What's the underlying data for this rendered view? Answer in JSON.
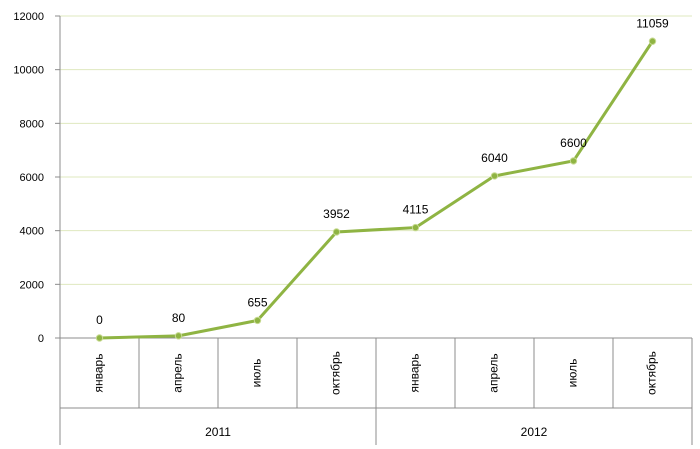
{
  "chart_data": {
    "type": "line",
    "categories": [
      "январь",
      "апрель",
      "июль",
      "октябрь",
      "январь",
      "апрель",
      "июль",
      "октябрь"
    ],
    "groups": [
      {
        "label": "2011",
        "span": 4
      },
      {
        "label": "2012",
        "span": 4
      }
    ],
    "series": [
      {
        "values": [
          0,
          80,
          655,
          3952,
          4115,
          6040,
          6600,
          11059
        ],
        "color": "#8fb443"
      }
    ],
    "data_labels": [
      "0",
      "80",
      "655",
      "3952",
      "4115",
      "6040",
      "6600",
      "11059"
    ],
    "y_ticks": [
      "0",
      "2000",
      "4000",
      "6000",
      "8000",
      "10000",
      "12000"
    ],
    "ylim": [
      0,
      12000
    ],
    "grid": true,
    "gridline_color": "#dfe8bf",
    "title": "",
    "xlabel": "",
    "ylabel": ""
  }
}
